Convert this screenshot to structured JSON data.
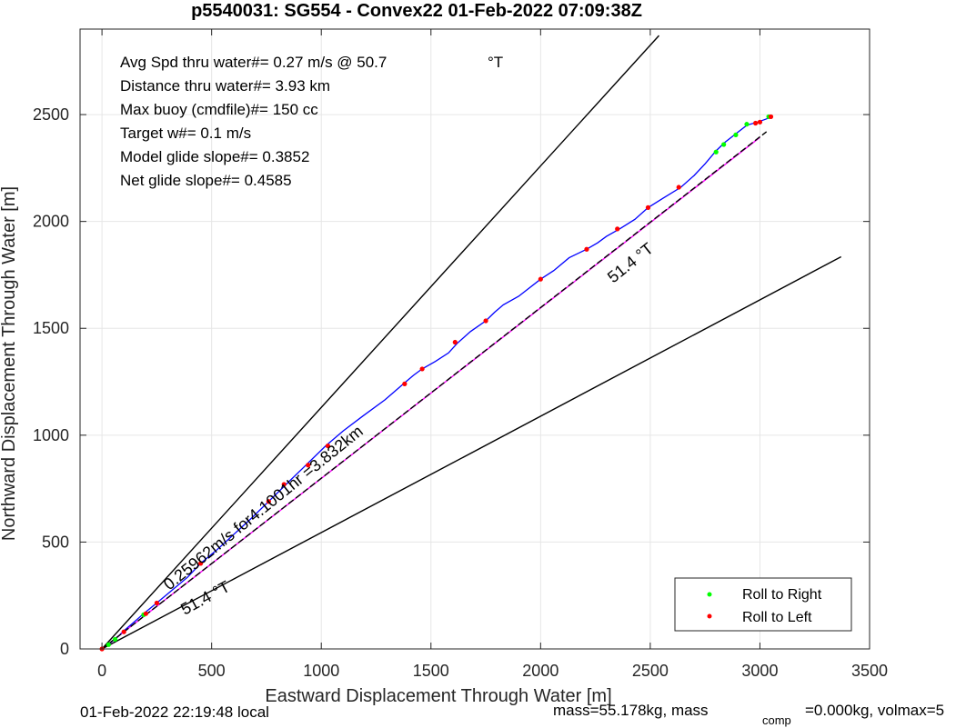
{
  "chart_data": {
    "type": "line",
    "title": "p5540031: SG554 - Convex22 01-Feb-2022 07:09:38Z",
    "xlabel": "Eastward Displacement Through Water [m]",
    "ylabel": "Northward Displacement Through Water [m]",
    "xlim": [
      -100,
      3500
    ],
    "ylim": [
      0,
      2900
    ],
    "xticks": [
      0,
      500,
      1000,
      1500,
      2000,
      2500,
      3000,
      3500
    ],
    "yticks": [
      0,
      500,
      1000,
      1500,
      2000,
      2500
    ],
    "grid": true,
    "info_lines": [
      "Avg Spd thru water#=  0.27 m/s @  50.7",
      "Distance thru water#=  3.93 km",
      "Max buoy (cmdfile)#= 150 cc",
      "Target w#= 0.1 m/s",
      "Model glide slope#= 0.3852",
      "Net glide slope#= 0.4585"
    ],
    "info_unit": "°T",
    "annotations": {
      "track_heading": "51.4 °T",
      "lower_line_heading": "51.4 °T",
      "distance_label": "0.25962m/s for4.1001hr =3.832km"
    },
    "series": [
      {
        "name": "track",
        "color": "#0000ff",
        "x": [
          0,
          35,
          70,
          100,
          140,
          190,
          250,
          320,
          390,
          450,
          520,
          600,
          680,
          760,
          840,
          930,
          1020,
          1100,
          1190,
          1290,
          1380,
          1420,
          1460,
          1520,
          1580,
          1620,
          1680,
          1750,
          1790,
          1830,
          1900,
          2000,
          2060,
          2130,
          2210,
          2260,
          2300,
          2360,
          2430,
          2490,
          2560,
          2640,
          2700,
          2750,
          2800,
          2840,
          2890,
          2940,
          2990,
          3030,
          3050
        ],
        "y": [
          0,
          25,
          55,
          85,
          120,
          165,
          215,
          275,
          335,
          400,
          460,
          535,
          610,
          690,
          770,
          860,
          950,
          1020,
          1090,
          1165,
          1245,
          1280,
          1310,
          1345,
          1385,
          1430,
          1485,
          1535,
          1575,
          1610,
          1650,
          1730,
          1770,
          1830,
          1870,
          1900,
          1930,
          1965,
          2010,
          2065,
          2110,
          2160,
          2215,
          2270,
          2330,
          2370,
          2410,
          2450,
          2465,
          2480,
          2490
        ]
      },
      {
        "name": "model-line",
        "color": "#ff00ff",
        "x": [
          0,
          3000
        ],
        "y": [
          0,
          2393
        ]
      },
      {
        "name": "heading-line",
        "color": "#000000",
        "dashed": true,
        "x": [
          0,
          3030
        ],
        "y": [
          0,
          2420
        ]
      },
      {
        "name": "upper-bound",
        "color": "#000000",
        "x": [
          0,
          2540
        ],
        "y": [
          0,
          2870
        ]
      },
      {
        "name": "lower-bound",
        "color": "#000000",
        "x": [
          0,
          3370
        ],
        "y": [
          0,
          1835
        ]
      },
      {
        "name": "Roll to Right",
        "color": "#00ff00",
        "marker": true,
        "x": [
          30,
          60,
          190,
          2800,
          2835,
          2890,
          2940,
          3040
        ],
        "y": [
          20,
          45,
          160,
          2325,
          2360,
          2405,
          2455,
          2490
        ]
      },
      {
        "name": "Roll to Left",
        "color": "#ff0000",
        "marker": true,
        "x": [
          0,
          100,
          200,
          250,
          450,
          760,
          830,
          940,
          1030,
          1380,
          1460,
          1610,
          1750,
          2000,
          2210,
          2350,
          2490,
          2630,
          2980,
          3000,
          3050
        ],
        "y": [
          0,
          80,
          165,
          215,
          400,
          690,
          770,
          860,
          950,
          1240,
          1310,
          1435,
          1535,
          1730,
          1870,
          1965,
          2065,
          2160,
          2460,
          2465,
          2490
        ]
      }
    ],
    "legend": {
      "placement": "bottom-right",
      "entries": [
        {
          "label": "Roll to Right",
          "color": "#00ff00"
        },
        {
          "label": "Roll to Left",
          "color": "#ff0000"
        }
      ]
    }
  },
  "footer": {
    "local_time": "01-Feb-2022 22:19:48 local",
    "mass_text": "mass=55.178kg, mass",
    "mass_sub": "comp",
    "mass_rest": "=0.000kg, volmax=5"
  }
}
